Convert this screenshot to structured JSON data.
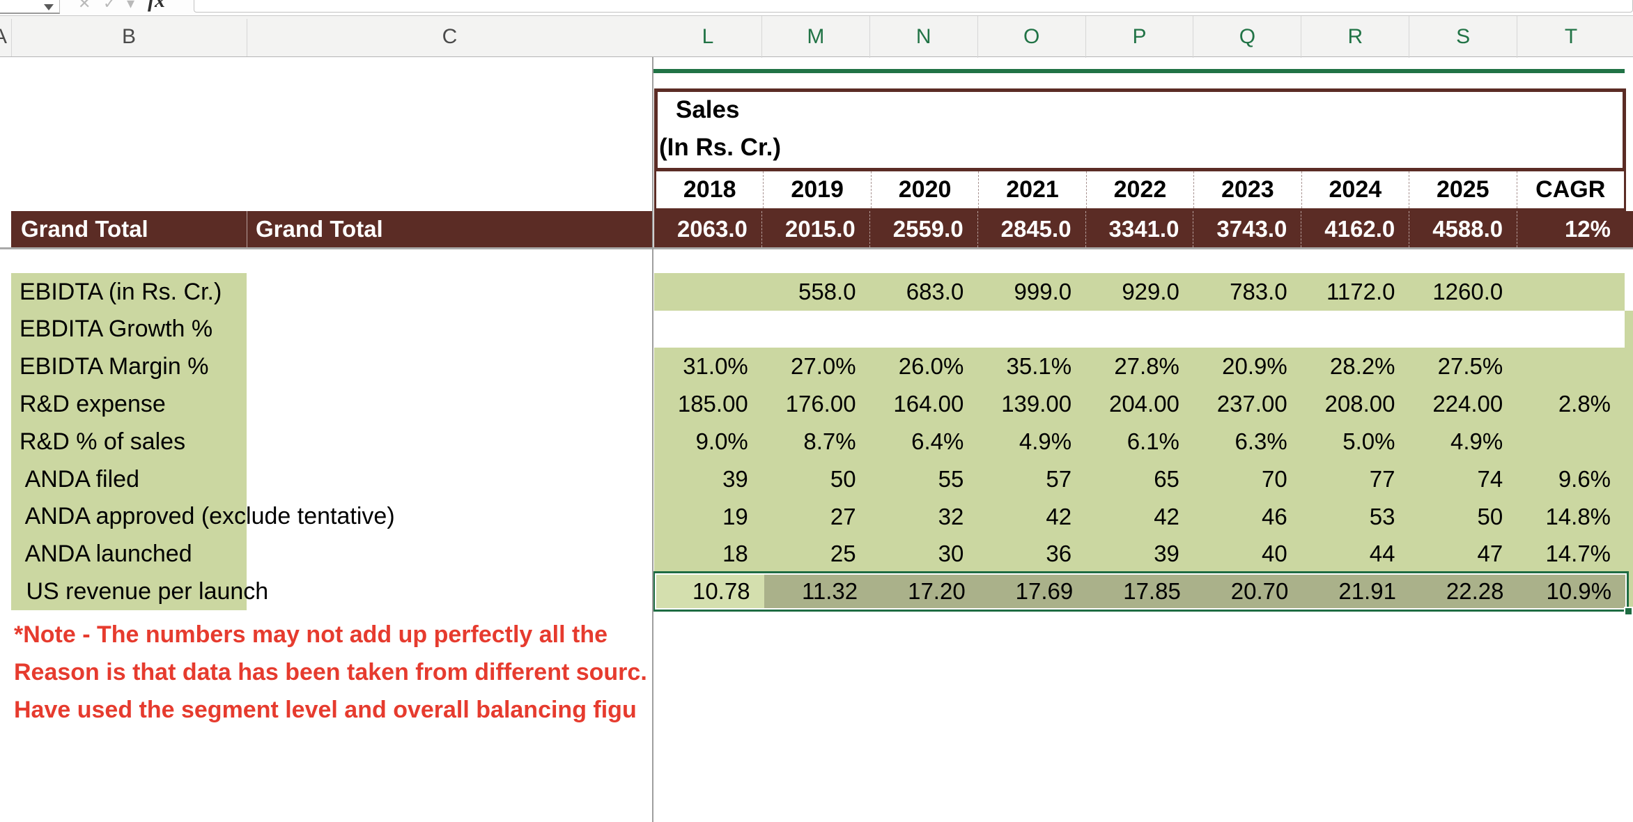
{
  "topbar": {
    "fx_label": "fx"
  },
  "col_headers_left": [
    "A",
    "B",
    "C"
  ],
  "col_headers_right": [
    "L",
    "M",
    "N",
    "O",
    "P",
    "Q",
    "R",
    "S",
    "T"
  ],
  "sheet": {
    "title_line1": "Sales",
    "title_line2": "(In Rs. Cr.)",
    "years": [
      "2018",
      "2019",
      "2020",
      "2021",
      "2022",
      "2023",
      "2024",
      "2025",
      "CAGR"
    ],
    "grand_total_label_b": "Grand Total",
    "grand_total_label_c": "Grand Total",
    "grand_total_values": [
      "2063.0",
      "2015.0",
      "2559.0",
      "2845.0",
      "3341.0",
      "3743.0",
      "4162.0",
      "4588.0",
      "12%"
    ],
    "rows": [
      {
        "label": "EBIDTA (in Rs. Cr.)",
        "values": [
          "",
          "558.0",
          "683.0",
          "999.0",
          "929.0",
          "783.0",
          "1172.0",
          "1260.0",
          ""
        ]
      },
      {
        "label": "EBDITA Growth %",
        "values": [
          "",
          "",
          "",
          "",
          "",
          "",
          "",
          "",
          ""
        ]
      },
      {
        "label": "EBIDTA Margin %",
        "values": [
          "31.0%",
          "27.0%",
          "26.0%",
          "35.1%",
          "27.8%",
          "20.9%",
          "28.2%",
          "27.5%",
          ""
        ]
      },
      {
        "label": "R&D expense",
        "values": [
          "185.00",
          "176.00",
          "164.00",
          "139.00",
          "204.00",
          "237.00",
          "208.00",
          "224.00",
          "2.8%"
        ]
      },
      {
        "label": "R&D % of sales",
        "values": [
          "9.0%",
          "8.7%",
          "6.4%",
          "4.9%",
          "6.1%",
          "6.3%",
          "5.0%",
          "4.9%",
          ""
        ]
      },
      {
        "label": " ANDA filed",
        "values": [
          "39",
          "50",
          "55",
          "57",
          "65",
          "70",
          "77",
          "74",
          "9.6%"
        ]
      },
      {
        "label": " ANDA approved (exclude tentative)",
        "values": [
          "19",
          "27",
          "32",
          "42",
          "42",
          "46",
          "53",
          "50",
          "14.8%"
        ]
      },
      {
        "label": " ANDA launched",
        "values": [
          "18",
          "25",
          "30",
          "36",
          "39",
          "40",
          "44",
          "47",
          "14.7%"
        ]
      },
      {
        "label": " US revenue per launch",
        "values": [
          "10.78",
          "11.32",
          "17.20",
          "17.69",
          "17.85",
          "20.70",
          "21.91",
          "22.28",
          "10.9%"
        ]
      }
    ],
    "notes": [
      "*Note - The numbers may not add up perfectly all the",
      "Reason is that data has been taken from different sourc.",
      "Have used the segment level and overall balancing figu"
    ]
  },
  "colors": {
    "maroon": "#5B2C25",
    "body_green": "#CBD7A1",
    "selection_border_green": "#1E6C42",
    "selected_range_fill": "#AAB18A",
    "active_cell_fill": "#D4DFAE",
    "column_letter_green": "#217346",
    "note_red": "#E63B2E"
  }
}
